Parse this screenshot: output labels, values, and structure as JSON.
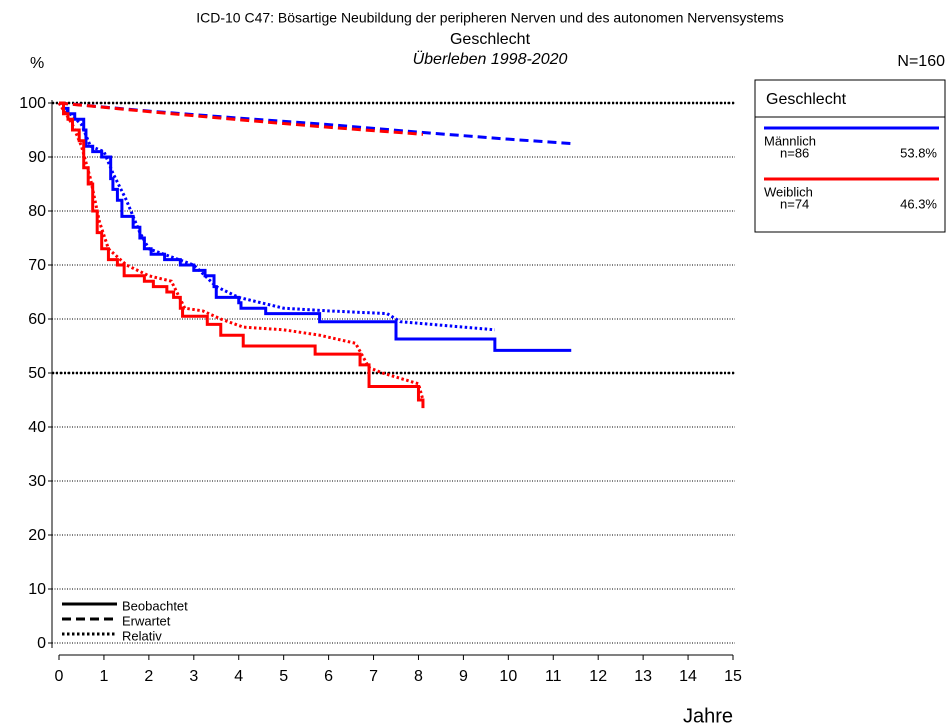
{
  "chart_data": {
    "type": "line",
    "title": "ICD-10 C47: Bösartige Neubildung der peripheren Nerven und des autonomen Nervensystems",
    "subtitle": "Geschlecht",
    "subtitle2": "Überleben 1998-2020",
    "y_label": "%",
    "x_label": "Jahre",
    "total": "N=160",
    "xlim": [
      0,
      15
    ],
    "xticks": [
      0,
      1,
      2,
      3,
      4,
      5,
      6,
      7,
      8,
      9,
      10,
      11,
      12,
      13,
      14,
      15
    ],
    "ylim": [
      0,
      100
    ],
    "yticks": [
      0,
      10,
      20,
      30,
      40,
      50,
      60,
      70,
      80,
      90,
      100
    ],
    "grid": true,
    "reference_lines": [
      100,
      50
    ],
    "legend": {
      "title": "Geschlecht",
      "entries": [
        {
          "name": "Männlich",
          "n": "n=86",
          "share": "53.8%",
          "color": "#0000ff"
        },
        {
          "name": "Weiblich",
          "n": "n=74",
          "share": "46.3%",
          "color": "#ff0000"
        }
      ]
    },
    "style_legend": [
      {
        "name": "Beobachtet",
        "style": "solid"
      },
      {
        "name": "Erwartet",
        "style": "dashed"
      },
      {
        "name": "Relativ",
        "style": "dotted"
      }
    ],
    "series": [
      {
        "group": 0,
        "style": "dashed",
        "color": "#0000ff",
        "x": [
          0,
          2,
          4,
          6,
          8,
          10,
          11.4
        ],
        "values": [
          100,
          98.5,
          97.2,
          96,
          94.6,
          93.3,
          92.5
        ]
      },
      {
        "group": 1,
        "style": "dashed",
        "color": "#ff0000",
        "x": [
          0,
          2,
          4,
          6,
          8.1
        ],
        "values": [
          100,
          98.4,
          96.9,
          95.5,
          94.2
        ]
      },
      {
        "group": 0,
        "style": "dotted",
        "color": "#0000ff",
        "x": [
          0,
          0.5,
          0.7,
          1,
          1.2,
          1.5,
          1.8,
          2,
          2.5,
          3,
          3.5,
          4,
          4.5,
          5,
          6,
          7.3,
          7.6,
          9.7
        ],
        "values": [
          100,
          96,
          92,
          91,
          87,
          82,
          76,
          73,
          71.5,
          70,
          66,
          64,
          63,
          62,
          61.5,
          61,
          59.5,
          58
        ]
      },
      {
        "group": 1,
        "style": "dotted",
        "color": "#ff0000",
        "x": [
          0,
          0.3,
          0.5,
          0.7,
          0.9,
          1.1,
          1.5,
          2,
          2.5,
          2.8,
          3.2,
          3.6,
          4.1,
          5,
          5.8,
          6.6,
          6.9,
          7.2,
          8,
          8.1
        ],
        "values": [
          100,
          96,
          92,
          86,
          78,
          73,
          70,
          68,
          67,
          62,
          61.5,
          60,
          58.5,
          58,
          57,
          55.5,
          51,
          50,
          48,
          45
        ]
      },
      {
        "group": 0,
        "style": "solid",
        "color": "#0000ff",
        "x": [
          0,
          0.1,
          0.1,
          0.2,
          0.2,
          0.35,
          0.35,
          0.55,
          0.55,
          0.6,
          0.6,
          0.75,
          0.75,
          0.95,
          0.95,
          1.15,
          1.15,
          1.2,
          1.2,
          1.3,
          1.3,
          1.4,
          1.4,
          1.65,
          1.65,
          1.8,
          1.8,
          1.9,
          1.9,
          2.05,
          2.05,
          2.35,
          2.35,
          2.7,
          2.7,
          3.0,
          3.0,
          3.25,
          3.25,
          3.45,
          3.45,
          3.5,
          3.5,
          4.0,
          4.0,
          4.05,
          4.05,
          4.6,
          4.6,
          5.8,
          5.8,
          7.5,
          7.5,
          9.7,
          9.7,
          11.4
        ],
        "values": [
          100,
          100,
          99,
          99,
          98,
          98,
          97,
          97,
          95,
          95,
          92,
          92,
          91,
          91,
          90,
          90,
          86,
          86,
          84,
          84,
          82,
          82,
          79,
          79,
          77,
          77,
          75,
          75,
          73,
          73,
          72,
          72,
          71,
          71,
          70,
          70,
          69,
          69,
          68,
          68,
          66,
          66,
          64,
          64,
          63,
          63,
          62,
          62,
          61,
          61,
          59.5,
          59.5,
          56.3,
          56.3,
          54.2,
          54.2
        ]
      },
      {
        "group": 1,
        "style": "solid",
        "color": "#ff0000",
        "x": [
          0,
          0.1,
          0.1,
          0.2,
          0.2,
          0.3,
          0.3,
          0.45,
          0.45,
          0.55,
          0.55,
          0.65,
          0.65,
          0.75,
          0.75,
          0.85,
          0.85,
          0.95,
          0.95,
          1.1,
          1.1,
          1.3,
          1.3,
          1.45,
          1.45,
          1.9,
          1.9,
          2.1,
          2.1,
          2.4,
          2.4,
          2.55,
          2.55,
          2.7,
          2.7,
          2.75,
          2.75,
          3.3,
          3.3,
          3.6,
          3.6,
          4.1,
          4.1,
          5.7,
          5.7,
          6.7,
          6.7,
          6.9,
          6.9,
          8.0,
          8.0,
          8.1,
          8.1
        ],
        "values": [
          100,
          100,
          98,
          98,
          97,
          97,
          95,
          95,
          93,
          93,
          88,
          88,
          85,
          85,
          80,
          80,
          76,
          76,
          73,
          73,
          71,
          71,
          70,
          70,
          68,
          68,
          67,
          67,
          66,
          66,
          65,
          65,
          64,
          64,
          62,
          62,
          60.5,
          60.5,
          59,
          59,
          57,
          57,
          55,
          55,
          53.5,
          53.5,
          51.5,
          51.5,
          47.5,
          47.5,
          45,
          45,
          43.5
        ]
      }
    ]
  }
}
